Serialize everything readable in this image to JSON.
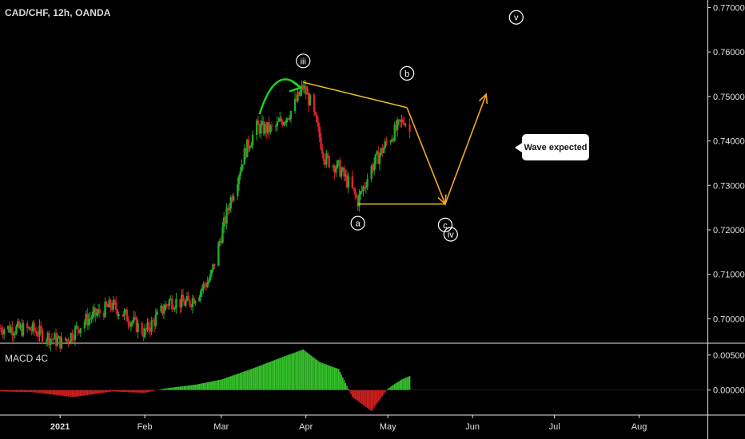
{
  "symbol_title": "CAD/CHF, 12h, OANDA",
  "indicator_title": "MACD 4C",
  "callout_text": "Wave expected",
  "colors": {
    "up": "#1fae2a",
    "down": "#e0202a",
    "arrow_green": "#1cd11c",
    "line_orange": "#f5a623",
    "line_yellow": "#f1c40f",
    "macd_pos": "#35c22b",
    "macd_neg": "#d11f1f"
  },
  "wave_labels": {
    "iii": {
      "text": "iii",
      "date": "2021-03-31",
      "price": 0.758
    },
    "b": {
      "text": "b",
      "date": "2021-05-08",
      "price": 0.7552
    },
    "a": {
      "text": "a",
      "date": "2021-04-20",
      "price": 0.7215
    },
    "c": {
      "text": "c",
      "date": "2021-05-22",
      "price": 0.7211
    },
    "iv": {
      "text": "iv",
      "date": "2021-05-24",
      "price": 0.719
    },
    "v": {
      "text": "v",
      "date": "2021-06-17",
      "price": 0.7678
    }
  },
  "chart_data": {
    "type": "candlestick",
    "title": "CAD/CHF, 12h, OANDA",
    "x_range": [
      "2020-12-10",
      "2021-08-26"
    ],
    "y_range": [
      0.6945,
      0.7717
    ],
    "x_ticks": [
      "2021",
      "Feb",
      "Mar",
      "Apr",
      "May",
      "Jun",
      "Jul",
      "Aug"
    ],
    "y_ticks": [
      "0.77000",
      "0.76000",
      "0.75000",
      "0.74000",
      "0.73000",
      "0.72000",
      "0.71000",
      "0.70000"
    ],
    "price_anchors": [
      [
        "2020-12-10",
        0.698
      ],
      [
        "2020-12-22",
        0.6975
      ],
      [
        "2021-01-02",
        0.6945
      ],
      [
        "2021-01-10",
        0.6995
      ],
      [
        "2021-01-20",
        0.703
      ],
      [
        "2021-01-26",
        0.7002
      ],
      [
        "2021-02-01",
        0.6968
      ],
      [
        "2021-02-10",
        0.704
      ],
      [
        "2021-02-17",
        0.7035
      ],
      [
        "2021-02-25",
        0.709
      ],
      [
        "2021-03-04",
        0.726
      ],
      [
        "2021-03-10",
        0.738
      ],
      [
        "2021-03-14",
        0.743
      ],
      [
        "2021-03-20",
        0.7425
      ],
      [
        "2021-03-27",
        0.747
      ],
      [
        "2021-03-31",
        0.7522
      ],
      [
        "2021-04-03",
        0.748
      ],
      [
        "2021-04-08",
        0.736
      ],
      [
        "2021-04-13",
        0.734
      ],
      [
        "2021-04-17",
        0.73
      ],
      [
        "2021-04-20",
        0.7265
      ],
      [
        "2021-04-25",
        0.734
      ],
      [
        "2021-05-01",
        0.74
      ],
      [
        "2021-05-07",
        0.745
      ],
      [
        "2021-05-09",
        0.742
      ]
    ],
    "macd_values": [
      [
        "2020-12-10",
        -0.0002
      ],
      [
        "2020-12-22",
        -0.0003
      ],
      [
        "2021-01-06",
        -0.001
      ],
      [
        "2021-01-20",
        -0.0002
      ],
      [
        "2021-02-01",
        -0.0004
      ],
      [
        "2021-02-08",
        0.0002
      ],
      [
        "2021-02-20",
        0.0008
      ],
      [
        "2021-03-01",
        0.0015
      ],
      [
        "2021-03-12",
        0.003
      ],
      [
        "2021-03-22",
        0.0045
      ],
      [
        "2021-03-31",
        0.0058
      ],
      [
        "2021-04-06",
        0.004
      ],
      [
        "2021-04-13",
        0.003
      ],
      [
        "2021-04-18",
        -0.001
      ],
      [
        "2021-04-25",
        -0.003
      ],
      [
        "2021-05-01",
        0.0002
      ],
      [
        "2021-05-06",
        0.0015
      ],
      [
        "2021-05-09",
        0.002
      ]
    ],
    "macd_y_ticks": [
      "0.00500",
      "0.00000"
    ],
    "macd_y_range": [
      -0.003,
      0.006
    ],
    "drawings": {
      "curved_arrow": {
        "from": [
          "2021-03-15",
          0.746
        ],
        "to": [
          "2021-03-30",
          0.752
        ]
      },
      "line_top": {
        "from": [
          "2021-03-31",
          0.7532
        ],
        "to": [
          "2021-05-08",
          0.7475
        ]
      },
      "line_bottom": {
        "from": [
          "2021-04-20",
          0.7258
        ],
        "to": [
          "2021-05-22",
          0.7258
        ]
      },
      "projection": [
        [
          "2021-05-08",
          0.7475
        ],
        [
          "2021-05-22",
          0.7258
        ],
        [
          "2021-06-06",
          0.7505
        ]
      ]
    }
  }
}
